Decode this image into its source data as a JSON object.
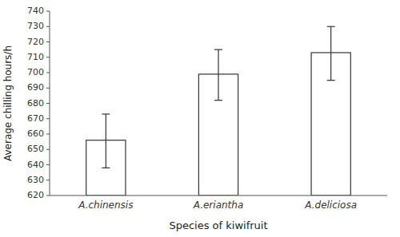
{
  "chart_data": {
    "type": "bar",
    "xlabel": "Species of kiwifruit",
    "ylabel": "Average chilling hours/h",
    "categories": [
      "A.chinensis",
      "A.eriantha",
      "A.deliciosa"
    ],
    "values": [
      656,
      699,
      713
    ],
    "error_lower": [
      18,
      17,
      18
    ],
    "error_upper": [
      17,
      16,
      17
    ],
    "color": "#ffffff",
    "ylim": [
      620,
      740
    ],
    "yticks": [
      620,
      630,
      640,
      650,
      660,
      670,
      680,
      690,
      700,
      710,
      720,
      730,
      740
    ],
    "grid": false
  }
}
